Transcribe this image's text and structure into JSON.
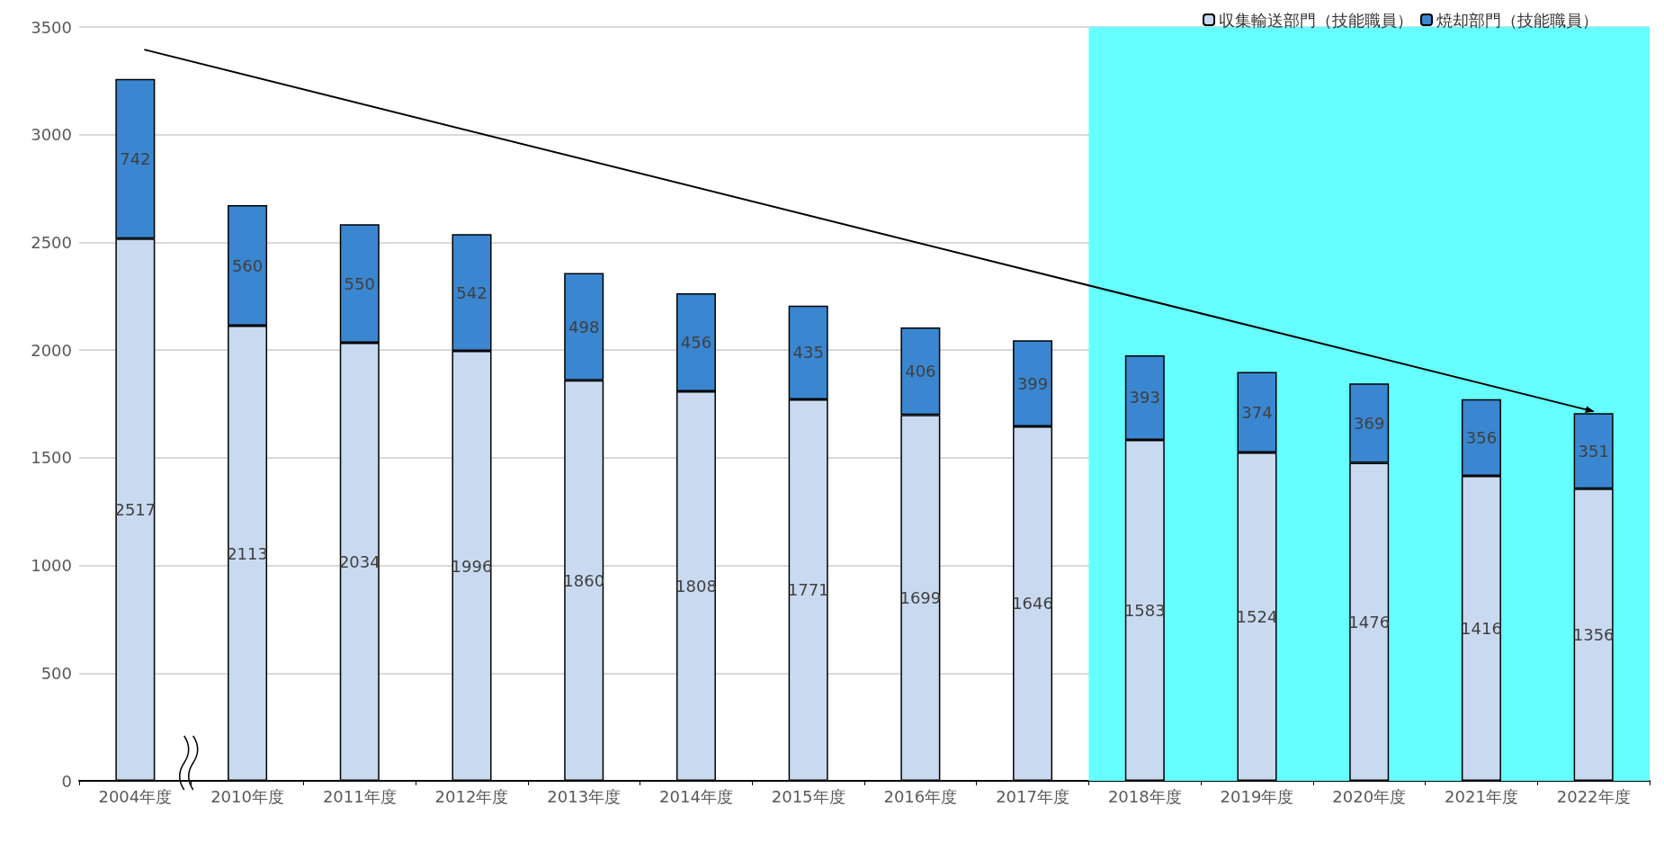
{
  "chart_data": {
    "type": "bar",
    "stacked": true,
    "categories": [
      "2004年度",
      "2010年度",
      "2011年度",
      "2012年度",
      "2013年度",
      "2014年度",
      "2015年度",
      "2016年度",
      "2017年度",
      "2018年度",
      "2019年度",
      "2020年度",
      "2021年度",
      "2022年度"
    ],
    "series": [
      {
        "name": "収集輸送部門（技能職員）",
        "color": "#c9daf0",
        "values": [
          2517,
          2113,
          2034,
          1996,
          1860,
          1808,
          1771,
          1699,
          1646,
          1583,
          1524,
          1476,
          1416,
          1356
        ]
      },
      {
        "name": "焼却部門（技能職員）",
        "color": "#3a86d0",
        "values": [
          742,
          560,
          550,
          542,
          498,
          456,
          435,
          406,
          399,
          393,
          374,
          369,
          356,
          351
        ]
      }
    ],
    "ylim": [
      0,
      3500
    ],
    "yticks": [
      0,
      500,
      1000,
      1500,
      2000,
      2500,
      3000,
      3500
    ],
    "grid": "y",
    "legend": "top right",
    "data_labels": true,
    "bands": [
      {
        "axis": "x",
        "from": "2018年度",
        "to": "2022年度",
        "color": "#66ffff"
      }
    ]
  }
}
